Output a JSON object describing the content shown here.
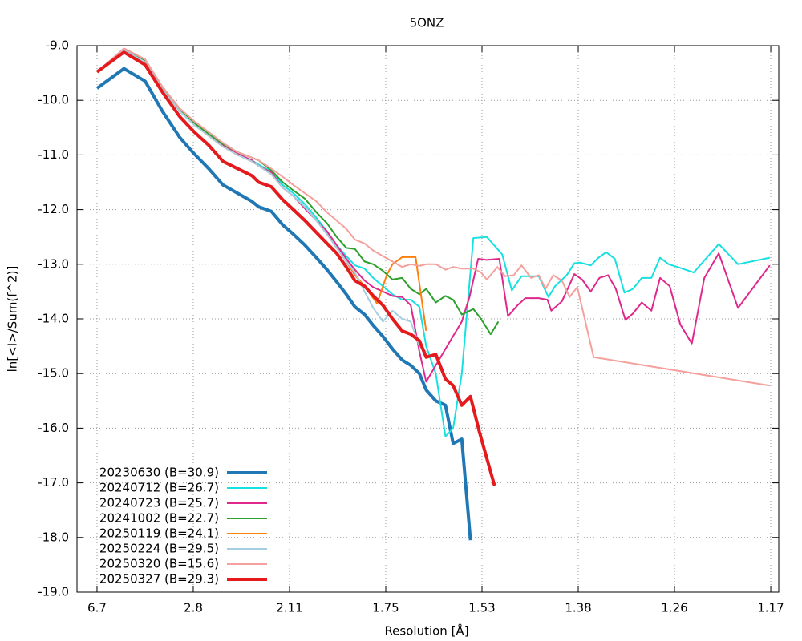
{
  "chart_data": {
    "type": "line",
    "title": "5ONZ",
    "x_label": "Resolution [Å]",
    "y_label": "ln[<I>/Sum(f^2)]",
    "xlim": [
      0.0012,
      0.7303
    ],
    "ylim": [
      -19,
      -9
    ],
    "xticks": [
      {
        "value": 0.022,
        "label": "6.7"
      },
      {
        "value": 0.122,
        "label": "2.8"
      },
      {
        "value": 0.222,
        "label": "2.11"
      },
      {
        "value": 0.322,
        "label": "1.75"
      },
      {
        "value": 0.422,
        "label": "1.53"
      },
      {
        "value": 0.522,
        "label": "1.38"
      },
      {
        "value": 0.622,
        "label": "1.26"
      },
      {
        "value": 0.722,
        "label": "1.17"
      }
    ],
    "yticks": [
      {
        "value": -9,
        "label": "-9.0"
      },
      {
        "value": -10,
        "label": "-10.0"
      },
      {
        "value": -11,
        "label": "-11.0"
      },
      {
        "value": -12,
        "label": "-12.0"
      },
      {
        "value": -13,
        "label": "-13.0"
      },
      {
        "value": -14,
        "label": "-14.0"
      },
      {
        "value": -15,
        "label": "-15.0"
      },
      {
        "value": -16,
        "label": "-16.0"
      },
      {
        "value": -17,
        "label": "-17.0"
      },
      {
        "value": -18,
        "label": "-18.0"
      },
      {
        "value": -19,
        "label": "-19.0"
      }
    ],
    "grid": true,
    "legend": "lower left",
    "series": [
      {
        "name": "20230630 (B=30.9)",
        "color": "#1f77b4",
        "linewidth": 4,
        "x": [
          0.022,
          0.05,
          0.072,
          0.09,
          0.108,
          0.123,
          0.138,
          0.153,
          0.168,
          0.183,
          0.19,
          0.203,
          0.215,
          0.226,
          0.238,
          0.25,
          0.261,
          0.271,
          0.281,
          0.29,
          0.3,
          0.309,
          0.319,
          0.329,
          0.339,
          0.348,
          0.357,
          0.364,
          0.374,
          0.384,
          0.392,
          0.401,
          0.41
        ],
        "values": [
          -9.78,
          -9.42,
          -9.65,
          -10.2,
          -10.68,
          -10.98,
          -11.25,
          -11.55,
          -11.7,
          -11.85,
          -11.95,
          -12.03,
          -12.28,
          -12.45,
          -12.65,
          -12.88,
          -13.1,
          -13.32,
          -13.55,
          -13.78,
          -13.92,
          -14.12,
          -14.32,
          -14.55,
          -14.75,
          -14.85,
          -15.0,
          -15.3,
          -15.5,
          -15.58,
          -16.28,
          -16.2,
          -18.05
        ]
      },
      {
        "name": "20240712 (B=26.7)",
        "color": "#17e0e0",
        "linewidth": 2,
        "x": [
          0.022,
          0.05,
          0.072,
          0.09,
          0.108,
          0.123,
          0.138,
          0.153,
          0.168,
          0.183,
          0.19,
          0.203,
          0.215,
          0.226,
          0.238,
          0.25,
          0.261,
          0.271,
          0.281,
          0.29,
          0.3,
          0.309,
          0.319,
          0.329,
          0.339,
          0.348,
          0.357,
          0.364,
          0.374,
          0.384,
          0.392,
          0.401,
          0.413,
          0.427,
          0.443,
          0.453,
          0.463,
          0.481,
          0.491,
          0.498,
          0.51,
          0.518,
          0.524,
          0.535,
          0.543,
          0.551,
          0.56,
          0.57,
          0.579,
          0.588,
          0.598,
          0.607,
          0.616,
          0.625,
          0.642,
          0.668,
          0.688,
          0.721
        ],
        "values": [
          -9.48,
          -9.08,
          -9.3,
          -9.78,
          -10.2,
          -10.42,
          -10.62,
          -10.82,
          -10.98,
          -11.1,
          -11.18,
          -11.3,
          -11.55,
          -11.7,
          -11.9,
          -12.15,
          -12.4,
          -12.65,
          -12.85,
          -13.02,
          -13.08,
          -13.25,
          -13.4,
          -13.55,
          -13.65,
          -13.65,
          -13.78,
          -14.5,
          -15.0,
          -16.15,
          -16.0,
          -15.0,
          -12.52,
          -12.5,
          -12.82,
          -13.48,
          -13.22,
          -13.22,
          -13.6,
          -13.4,
          -13.2,
          -12.98,
          -12.97,
          -13.02,
          -12.88,
          -12.78,
          -12.9,
          -13.52,
          -13.45,
          -13.25,
          -13.25,
          -12.88,
          -13.0,
          -13.05,
          -13.15,
          -12.63,
          -13.0,
          -12.88
        ]
      },
      {
        "name": "20240723 (B=25.7)",
        "color": "#e0288c",
        "linewidth": 2,
        "x": [
          0.022,
          0.05,
          0.072,
          0.09,
          0.108,
          0.123,
          0.138,
          0.153,
          0.168,
          0.183,
          0.19,
          0.203,
          0.215,
          0.226,
          0.238,
          0.25,
          0.261,
          0.271,
          0.281,
          0.29,
          0.3,
          0.309,
          0.319,
          0.329,
          0.339,
          0.348,
          0.357,
          0.364,
          0.384,
          0.401,
          0.409,
          0.418,
          0.427,
          0.44,
          0.449,
          0.459,
          0.467,
          0.481,
          0.49,
          0.494,
          0.505,
          0.518,
          0.526,
          0.535,
          0.544,
          0.553,
          0.561,
          0.571,
          0.579,
          0.588,
          0.598,
          0.607,
          0.617,
          0.628,
          0.64,
          0.653,
          0.668,
          0.688,
          0.721
        ],
        "values": [
          -9.48,
          -9.08,
          -9.3,
          -9.78,
          -10.2,
          -10.42,
          -10.62,
          -10.82,
          -10.98,
          -11.1,
          -11.2,
          -11.32,
          -11.6,
          -11.75,
          -11.98,
          -12.2,
          -12.4,
          -12.65,
          -12.9,
          -13.1,
          -13.3,
          -13.42,
          -13.5,
          -13.58,
          -13.6,
          -13.75,
          -14.6,
          -15.15,
          -14.55,
          -14.05,
          -13.6,
          -12.9,
          -12.92,
          -12.9,
          -13.95,
          -13.75,
          -13.62,
          -13.62,
          -13.65,
          -13.85,
          -13.68,
          -13.18,
          -13.28,
          -13.5,
          -13.25,
          -13.2,
          -13.45,
          -14.02,
          -13.9,
          -13.7,
          -13.85,
          -13.25,
          -13.4,
          -14.1,
          -14.45,
          -13.25,
          -12.8,
          -13.8,
          -13.02
        ]
      },
      {
        "name": "20241002 (B=22.7)",
        "color": "#2ca02c",
        "linewidth": 2,
        "x": [
          0.022,
          0.05,
          0.072,
          0.09,
          0.108,
          0.123,
          0.138,
          0.153,
          0.168,
          0.183,
          0.19,
          0.203,
          0.215,
          0.226,
          0.238,
          0.25,
          0.261,
          0.271,
          0.281,
          0.29,
          0.3,
          0.309,
          0.319,
          0.329,
          0.339,
          0.348,
          0.357,
          0.364,
          0.374,
          0.384,
          0.392,
          0.401,
          0.413,
          0.421,
          0.431,
          0.439
        ],
        "values": [
          -9.48,
          -9.08,
          -9.28,
          -9.78,
          -10.18,
          -10.42,
          -10.62,
          -10.8,
          -10.95,
          -11.05,
          -11.1,
          -11.28,
          -11.5,
          -11.65,
          -11.8,
          -12.05,
          -12.25,
          -12.5,
          -12.7,
          -12.72,
          -12.95,
          -13.0,
          -13.12,
          -13.28,
          -13.25,
          -13.45,
          -13.55,
          -13.45,
          -13.7,
          -13.58,
          -13.65,
          -13.92,
          -13.82,
          -14.0,
          -14.28,
          -14.05
        ]
      },
      {
        "name": "20250119 (B=24.1)",
        "color": "#ff7f0e",
        "linewidth": 2,
        "x": [
          0.022,
          0.05,
          0.072,
          0.09,
          0.108,
          0.123,
          0.138,
          0.153,
          0.168,
          0.183,
          0.19,
          0.203,
          0.215,
          0.226,
          0.238,
          0.25,
          0.261,
          0.271,
          0.281,
          0.29,
          0.3,
          0.313,
          0.323,
          0.329,
          0.339,
          0.353,
          0.364
        ],
        "values": [
          -9.48,
          -9.08,
          -9.3,
          -9.8,
          -10.2,
          -10.45,
          -10.65,
          -10.85,
          -11.0,
          -11.12,
          -11.2,
          -11.35,
          -11.6,
          -11.75,
          -11.95,
          -12.2,
          -12.45,
          -12.7,
          -12.95,
          -13.2,
          -13.4,
          -13.72,
          -13.2,
          -13.0,
          -12.87,
          -12.87,
          -14.22
        ]
      },
      {
        "name": "20250224 (B=29.5)",
        "color": "#a6cee3",
        "linewidth": 2,
        "x": [
          0.022,
          0.05,
          0.072,
          0.09,
          0.108,
          0.123,
          0.138,
          0.153,
          0.168,
          0.183,
          0.19,
          0.203,
          0.215,
          0.226,
          0.238,
          0.25,
          0.261,
          0.271,
          0.281,
          0.29,
          0.3,
          0.309,
          0.319,
          0.329,
          0.339,
          0.348,
          0.357,
          0.364
        ],
        "values": [
          -9.48,
          -9.08,
          -9.3,
          -9.8,
          -10.2,
          -10.45,
          -10.65,
          -10.85,
          -11.0,
          -11.12,
          -11.2,
          -11.35,
          -11.6,
          -11.75,
          -11.95,
          -12.2,
          -12.45,
          -12.7,
          -12.95,
          -13.15,
          -13.5,
          -13.8,
          -14.05,
          -13.85,
          -14.0,
          -14.05,
          -14.5,
          -14.6
        ]
      },
      {
        "name": "20250320 (B=15.6)",
        "color": "#f4a09c",
        "linewidth": 2,
        "x": [
          0.022,
          0.05,
          0.072,
          0.09,
          0.108,
          0.123,
          0.138,
          0.153,
          0.168,
          0.183,
          0.19,
          0.203,
          0.215,
          0.226,
          0.238,
          0.25,
          0.261,
          0.271,
          0.281,
          0.29,
          0.3,
          0.309,
          0.319,
          0.329,
          0.339,
          0.348,
          0.357,
          0.364,
          0.374,
          0.384,
          0.392,
          0.401,
          0.413,
          0.421,
          0.427,
          0.438,
          0.446,
          0.455,
          0.463,
          0.473,
          0.481,
          0.488,
          0.496,
          0.505,
          0.513,
          0.521,
          0.538,
          0.721
        ],
        "values": [
          -9.48,
          -9.05,
          -9.25,
          -9.75,
          -10.15,
          -10.38,
          -10.58,
          -10.78,
          -10.95,
          -11.05,
          -11.1,
          -11.25,
          -11.4,
          -11.55,
          -11.7,
          -11.85,
          -12.05,
          -12.2,
          -12.35,
          -12.55,
          -12.62,
          -12.75,
          -12.85,
          -12.95,
          -13.05,
          -13.0,
          -13.03,
          -13.0,
          -13.0,
          -13.1,
          -13.05,
          -13.08,
          -13.08,
          -13.15,
          -13.28,
          -13.05,
          -13.22,
          -13.2,
          -13.02,
          -13.25,
          -13.2,
          -13.45,
          -13.2,
          -13.3,
          -13.6,
          -13.42,
          -14.7,
          -15.22
        ]
      },
      {
        "name": "20250327 (B=29.3)",
        "color": "#e41a1c",
        "linewidth": 4,
        "x": [
          0.022,
          0.05,
          0.072,
          0.09,
          0.108,
          0.123,
          0.138,
          0.153,
          0.168,
          0.183,
          0.19,
          0.203,
          0.215,
          0.226,
          0.238,
          0.25,
          0.261,
          0.271,
          0.281,
          0.29,
          0.3,
          0.309,
          0.319,
          0.329,
          0.339,
          0.348,
          0.357,
          0.364,
          0.374,
          0.384,
          0.392,
          0.401,
          0.41,
          0.419,
          0.435
        ],
        "values": [
          -9.48,
          -9.12,
          -9.35,
          -9.85,
          -10.3,
          -10.58,
          -10.82,
          -11.12,
          -11.25,
          -11.38,
          -11.5,
          -11.58,
          -11.82,
          -12.0,
          -12.2,
          -12.42,
          -12.62,
          -12.8,
          -13.05,
          -13.3,
          -13.4,
          -13.58,
          -13.75,
          -14.0,
          -14.22,
          -14.28,
          -14.4,
          -14.7,
          -14.65,
          -15.1,
          -15.22,
          -15.58,
          -15.42,
          -16.05,
          -17.05
        ]
      }
    ]
  }
}
